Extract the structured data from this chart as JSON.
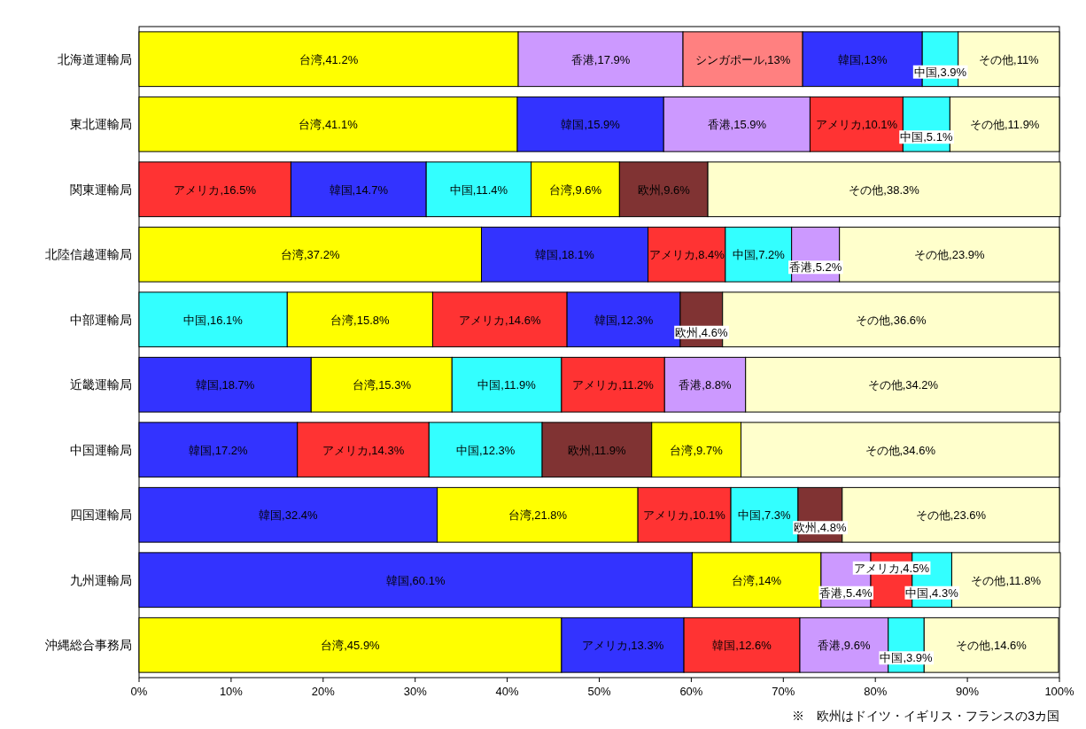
{
  "chart_data": {
    "type": "bar",
    "orientation": "horizontal",
    "stacked": true,
    "categories": [
      "北海道運輸局",
      "東北運輸局",
      "関東運輸局",
      "北陸信越運輸局",
      "中部運輸局",
      "近畿運輸局",
      "中国運輸局",
      "四国運輸局",
      "九州運輸局",
      "沖縄総合事務局"
    ],
    "series": [
      {
        "values": [
          41.2,
          41.1,
          16.5,
          37.2,
          16.1,
          18.7,
          17.2,
          32.4,
          60.1,
          45.9
        ],
        "colors": [
          "#ffff00",
          "#ffff00",
          "#ff3333",
          "#ffff00",
          "#33ffff",
          "#3333ff",
          "#3333ff",
          "#3333ff",
          "#3333ff",
          "#ffff00"
        ],
        "value_labels": [
          "台湾,41.2%",
          "台湾,41.1%",
          "アメリカ,16.5%",
          "台湾,37.2%",
          "中国,16.1%",
          "韓国,18.7%",
          "韓国,17.2%",
          "韓国,32.4%",
          "韓国,60.1%",
          "台湾,45.9%"
        ]
      },
      {
        "values": [
          17.9,
          15.9,
          14.7,
          18.1,
          15.8,
          15.3,
          14.3,
          21.8,
          14,
          13.3
        ],
        "colors": [
          "#cc99ff",
          "#3333ff",
          "#3333ff",
          "#3333ff",
          "#ffff00",
          "#ffff00",
          "#ff3333",
          "#ffff00",
          "#ffff00",
          "#3333ff"
        ],
        "value_labels": [
          "香港,17.9%",
          "韓国,15.9%",
          "韓国,14.7%",
          "韓国,18.1%",
          "台湾,15.8%",
          "台湾,15.3%",
          "アメリカ,14.3%",
          "台湾,21.8%",
          "台湾,14%",
          "アメリカ,13.3%"
        ]
      },
      {
        "values": [
          13,
          15.9,
          11.4,
          8.4,
          14.6,
          11.9,
          12.3,
          10.1,
          5.4,
          12.6
        ],
        "colors": [
          "#ff8080",
          "#cc99ff",
          "#33ffff",
          "#ff3333",
          "#ff3333",
          "#33ffff",
          "#33ffff",
          "#ff3333",
          "#cc99ff",
          "#ff3333"
        ],
        "value_labels": [
          "シンガポール,13%",
          "香港,15.9%",
          "中国,11.4%",
          "アメリカ,8.4%",
          "アメリカ,14.6%",
          "中国,11.9%",
          "中国,12.3%",
          "アメリカ,10.1%",
          "香港,5.4%",
          "韓国,12.6%"
        ]
      },
      {
        "values": [
          13,
          10.1,
          9.6,
          7.2,
          12.3,
          11.2,
          11.9,
          7.3,
          4.5,
          9.6
        ],
        "colors": [
          "#3333ff",
          "#ff3333",
          "#ffff00",
          "#33ffff",
          "#3333ff",
          "#ff3333",
          "#803333",
          "#33ffff",
          "#ff3333",
          "#cc99ff"
        ],
        "value_labels": [
          "韓国,13%",
          "アメリカ,10.1%",
          "台湾,9.6%",
          "中国,7.2%",
          "韓国,12.3%",
          "アメリカ,11.2%",
          "欧州,11.9%",
          "中国,7.3%",
          "アメリカ,4.5%",
          "香港,9.6%"
        ]
      },
      {
        "values": [
          3.9,
          5.1,
          9.6,
          5.2,
          4.6,
          8.8,
          9.7,
          4.8,
          4.3,
          3.9
        ],
        "colors": [
          "#33ffff",
          "#33ffff",
          "#803333",
          "#cc99ff",
          "#803333",
          "#cc99ff",
          "#ffff00",
          "#803333",
          "#33ffff",
          "#33ffff"
        ],
        "value_labels": [
          "中国,3.9%",
          "中国,5.1%",
          "欧州,9.6%",
          "香港,5.2%",
          "欧州,4.6%",
          "香港,8.8%",
          "台湾,9.7%",
          "欧州,4.8%",
          "中国,4.3%",
          "中国,3.9%"
        ]
      },
      {
        "values": [
          11,
          11.9,
          38.3,
          23.9,
          36.6,
          34.2,
          34.6,
          23.6,
          11.8,
          14.6
        ],
        "colors": [
          "#ffffcc",
          "#ffffcc",
          "#ffffcc",
          "#ffffcc",
          "#ffffcc",
          "#ffffcc",
          "#ffffcc",
          "#ffffcc",
          "#ffffcc",
          "#ffffcc"
        ],
        "value_labels": [
          "その他,11%",
          "その他,11.9%",
          "その他,38.3%",
          "その他,23.9%",
          "その他,36.6%",
          "その他,34.2%",
          "その他,34.6%",
          "その他,23.6%",
          "その他,11.8%",
          "その他,14.6%"
        ]
      }
    ],
    "xlim": [
      0,
      100
    ],
    "xticks": [
      {
        "value": 0,
        "label": "0%"
      },
      {
        "value": 10,
        "label": "10%"
      },
      {
        "value": 20,
        "label": "20%"
      },
      {
        "value": 30,
        "label": "30%"
      },
      {
        "value": 40,
        "label": "40%"
      },
      {
        "value": 50,
        "label": "50%"
      },
      {
        "value": 60,
        "label": "60%"
      },
      {
        "value": 70,
        "label": "70%"
      },
      {
        "value": 80,
        "label": "80%"
      },
      {
        "value": 90,
        "label": "90%"
      },
      {
        "value": 100,
        "label": "100%"
      }
    ],
    "annotations": [
      "※　欧州はドイツ・イギリス・フランスの3カ国"
    ]
  }
}
